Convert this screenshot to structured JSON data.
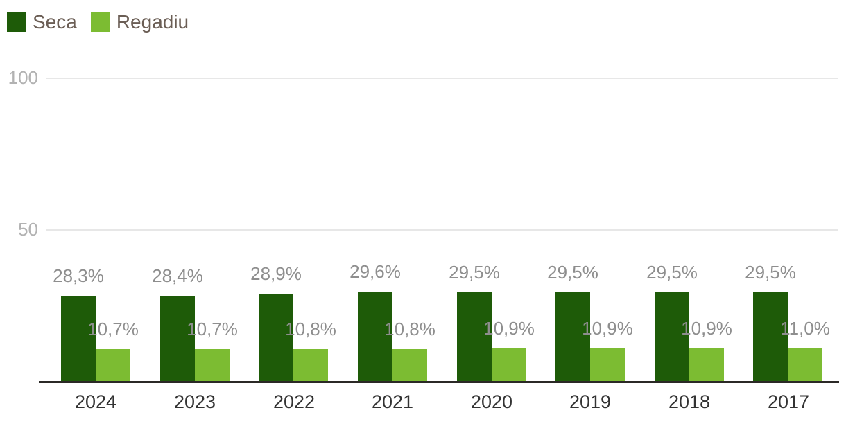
{
  "chart_data": {
    "type": "bar",
    "orientation": "vertical-grouped",
    "title": "",
    "xlabel": "",
    "ylabel": "",
    "categories": [
      "2024",
      "2023",
      "2022",
      "2021",
      "2020",
      "2019",
      "2018",
      "2017"
    ],
    "series": [
      {
        "name": "Seca",
        "color": "#1E5B08",
        "values": [
          28.3,
          28.4,
          28.9,
          29.6,
          29.5,
          29.5,
          29.5,
          29.5
        ],
        "labels": [
          "28,3%",
          "28,4%",
          "28,9%",
          "29,6%",
          "29,5%",
          "29,5%",
          "29,5%",
          "29,5%"
        ]
      },
      {
        "name": "Regadiu",
        "color": "#7CBC32",
        "values": [
          10.7,
          10.7,
          10.8,
          10.8,
          10.9,
          10.9,
          10.9,
          11.0
        ],
        "labels": [
          "10,7%",
          "10,7%",
          "10,8%",
          "10,8%",
          "10,9%",
          "10,9%",
          "10,9%",
          "11,0%"
        ]
      }
    ],
    "ylim": [
      0,
      100
    ],
    "yticks": [
      50,
      100
    ],
    "ytick_labels": [
      "50",
      "100"
    ],
    "grid": true,
    "legend_position": "top-left",
    "value_suffix": "%"
  },
  "colors": {
    "grid": "#E7E7E7",
    "axis": "#2B2926",
    "value_label": "#8E8E8E",
    "ytick_label": "#B2B2B2",
    "xtick_label": "#333333",
    "legend_text": "#6B5E55",
    "background": "#FFFFFF"
  }
}
